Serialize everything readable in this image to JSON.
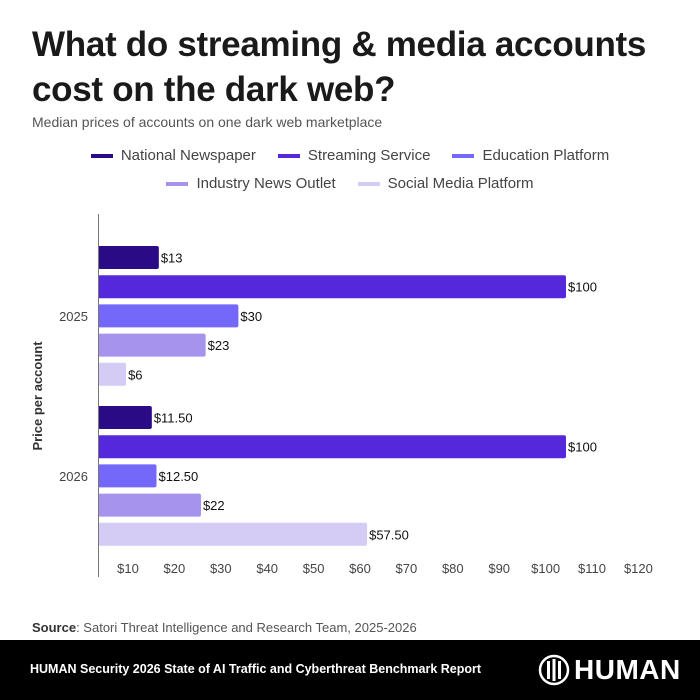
{
  "title": "What do streaming & media accounts cost on the dark web?",
  "subtitle": "Median prices of accounts on one dark web marketplace",
  "source_label": "Source",
  "source_text": ": Satori Threat Intelligence and Research Team, 2025-2026",
  "footer": {
    "report": "HUMAN Security 2026 State of AI Traffic and Cyberthreat Benchmark Report",
    "logo_text": "HUMAN"
  },
  "chart_data": {
    "type": "bar",
    "orientation": "horizontal",
    "title": "What do streaming & media accounts cost on the dark web?",
    "ylabel": "Price per account",
    "xlabel": "",
    "categories": [
      "2025",
      "2026"
    ],
    "series": [
      {
        "name": "National Newspaper",
        "color": "#2b0a86",
        "values": [
          13,
          11.5
        ],
        "labels": [
          "$13",
          "$11.50"
        ]
      },
      {
        "name": "Streaming Service",
        "color": "#5628dc",
        "values": [
          100,
          100
        ],
        "labels": [
          "$100",
          "$100"
        ]
      },
      {
        "name": "Education Platform",
        "color": "#7468fa",
        "values": [
          30,
          12.5
        ],
        "labels": [
          "$30",
          "$12.50"
        ]
      },
      {
        "name": "Industry News Outlet",
        "color": "#a593ee",
        "values": [
          23,
          22
        ],
        "labels": [
          "$23",
          "$22"
        ]
      },
      {
        "name": "Social Media Platform",
        "color": "#d4ccf5",
        "values": [
          6,
          57.5
        ],
        "labels": [
          "$6",
          "$57.50"
        ]
      }
    ],
    "xticks": [
      "$10",
      "$20",
      "$30",
      "$40",
      "$50",
      "$60",
      "$70",
      "$80",
      "$90",
      "$100",
      "$110",
      "$120"
    ],
    "xlim": [
      0,
      120
    ],
    "legend": "top-center",
    "grid": false
  }
}
